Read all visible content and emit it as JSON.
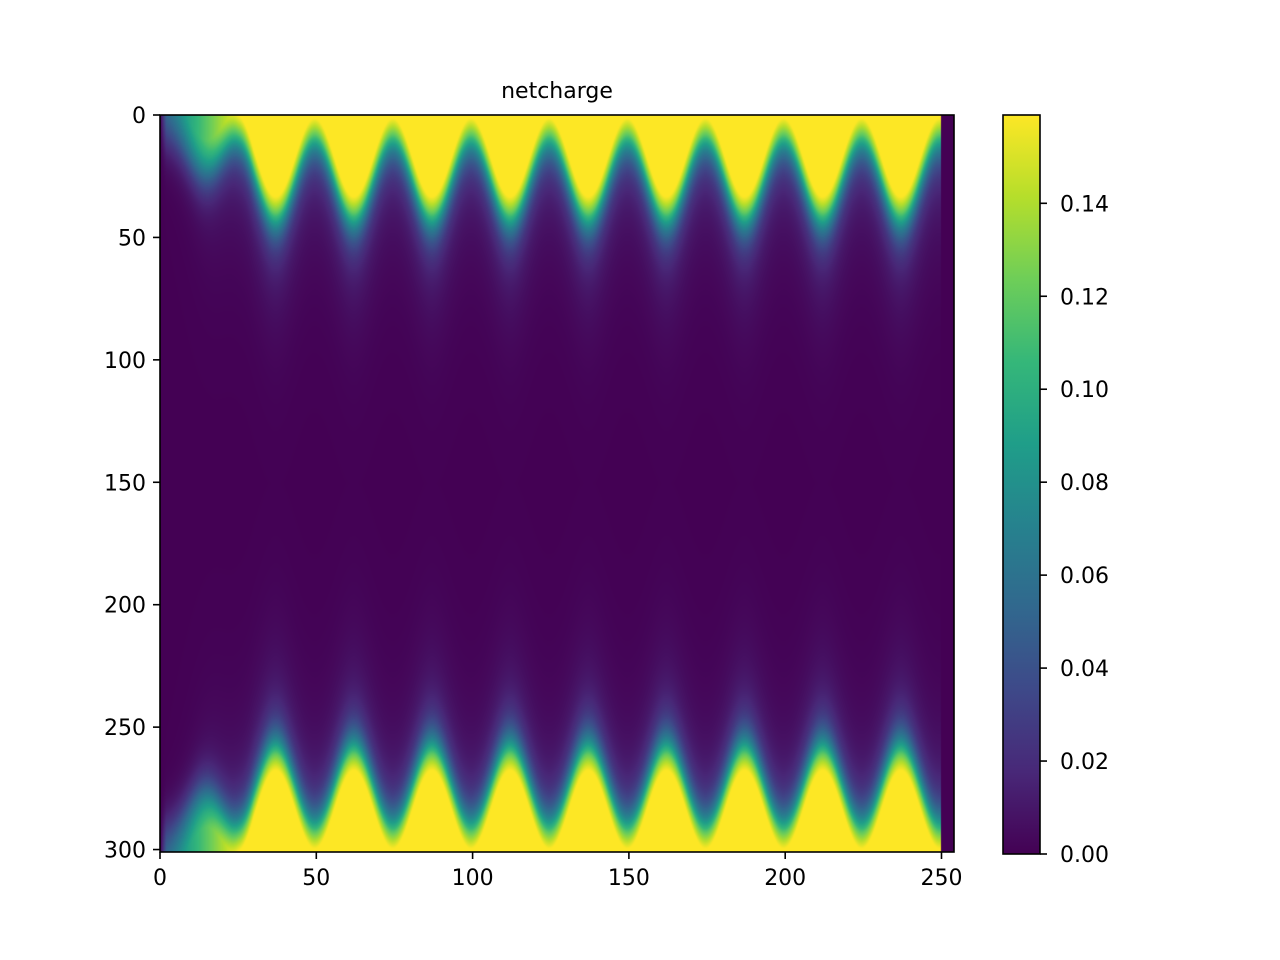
{
  "chart_data": {
    "type": "heatmap",
    "title": "netcharge",
    "xlabel": "",
    "ylabel": "",
    "colormap": "viridis",
    "colormap_stops": [
      "#440154",
      "#482878",
      "#3e4989",
      "#31688e",
      "#26828e",
      "#1f9e89",
      "#35b779",
      "#6ece58",
      "#b5de2b",
      "#fde725"
    ],
    "x_range": [
      0,
      254
    ],
    "y_range": [
      0,
      301
    ],
    "y_inverted": true,
    "x_ticks": [
      "0",
      "50",
      "100",
      "150",
      "200",
      "250"
    ],
    "x_tick_values": [
      0,
      50,
      100,
      150,
      200,
      250
    ],
    "y_ticks": [
      "0",
      "50",
      "100",
      "150",
      "200",
      "250",
      "300"
    ],
    "y_tick_values": [
      0,
      50,
      100,
      150,
      200,
      250,
      300
    ],
    "colorbar": {
      "range": [
        0,
        0.159
      ],
      "ticks": [
        "0.00",
        "0.02",
        "0.04",
        "0.06",
        "0.08",
        "0.10",
        "0.12",
        "0.14"
      ],
      "tick_values": [
        0,
        0.02,
        0.04,
        0.06,
        0.08,
        0.1,
        0.12,
        0.14
      ]
    },
    "pattern": {
      "active_x_range": [
        0,
        250
      ],
      "period_x": 25,
      "wave_peaks_x": [
        12,
        37,
        62,
        87,
        112,
        137,
        162,
        187,
        212,
        237
      ],
      "top_band_depth_min": 8,
      "top_band_depth_max": 40,
      "bottom_band_depth_min": 8,
      "bottom_band_depth_max": 40,
      "saturation_value": 0.159
    }
  }
}
